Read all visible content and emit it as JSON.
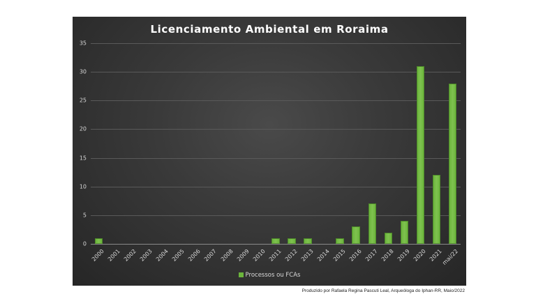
{
  "chart_data": {
    "type": "bar",
    "title": "Licenciamento Ambiental em Roraima",
    "xlabel": "",
    "ylabel": "",
    "ylim": [
      0,
      35
    ],
    "yticks": [
      0,
      5,
      10,
      15,
      20,
      25,
      30,
      35
    ],
    "grid": true,
    "legend_position": "bottom",
    "categories": [
      "2000",
      "2001",
      "2002",
      "2003",
      "2004",
      "2005",
      "2006",
      "2007",
      "2008",
      "2009",
      "2010",
      "2011",
      "2012",
      "2013",
      "2014",
      "2015",
      "2016",
      "2017",
      "2018",
      "2019",
      "2020",
      "2021",
      "mai/22"
    ],
    "series": [
      {
        "name": "Processos ou FCAs",
        "color": "#6bb53c",
        "values": [
          1,
          0,
          0,
          0,
          0,
          0,
          0,
          0,
          0,
          0,
          0,
          1,
          1,
          1,
          0,
          1,
          3,
          7,
          2,
          4,
          31,
          12,
          28
        ]
      }
    ]
  },
  "legend": {
    "label": "Processos ou FCAs"
  },
  "credit": "Produzido por Rafaela Regina Pascuti Leal, Arqueóloga do Iphan-RR, Maio/2022"
}
